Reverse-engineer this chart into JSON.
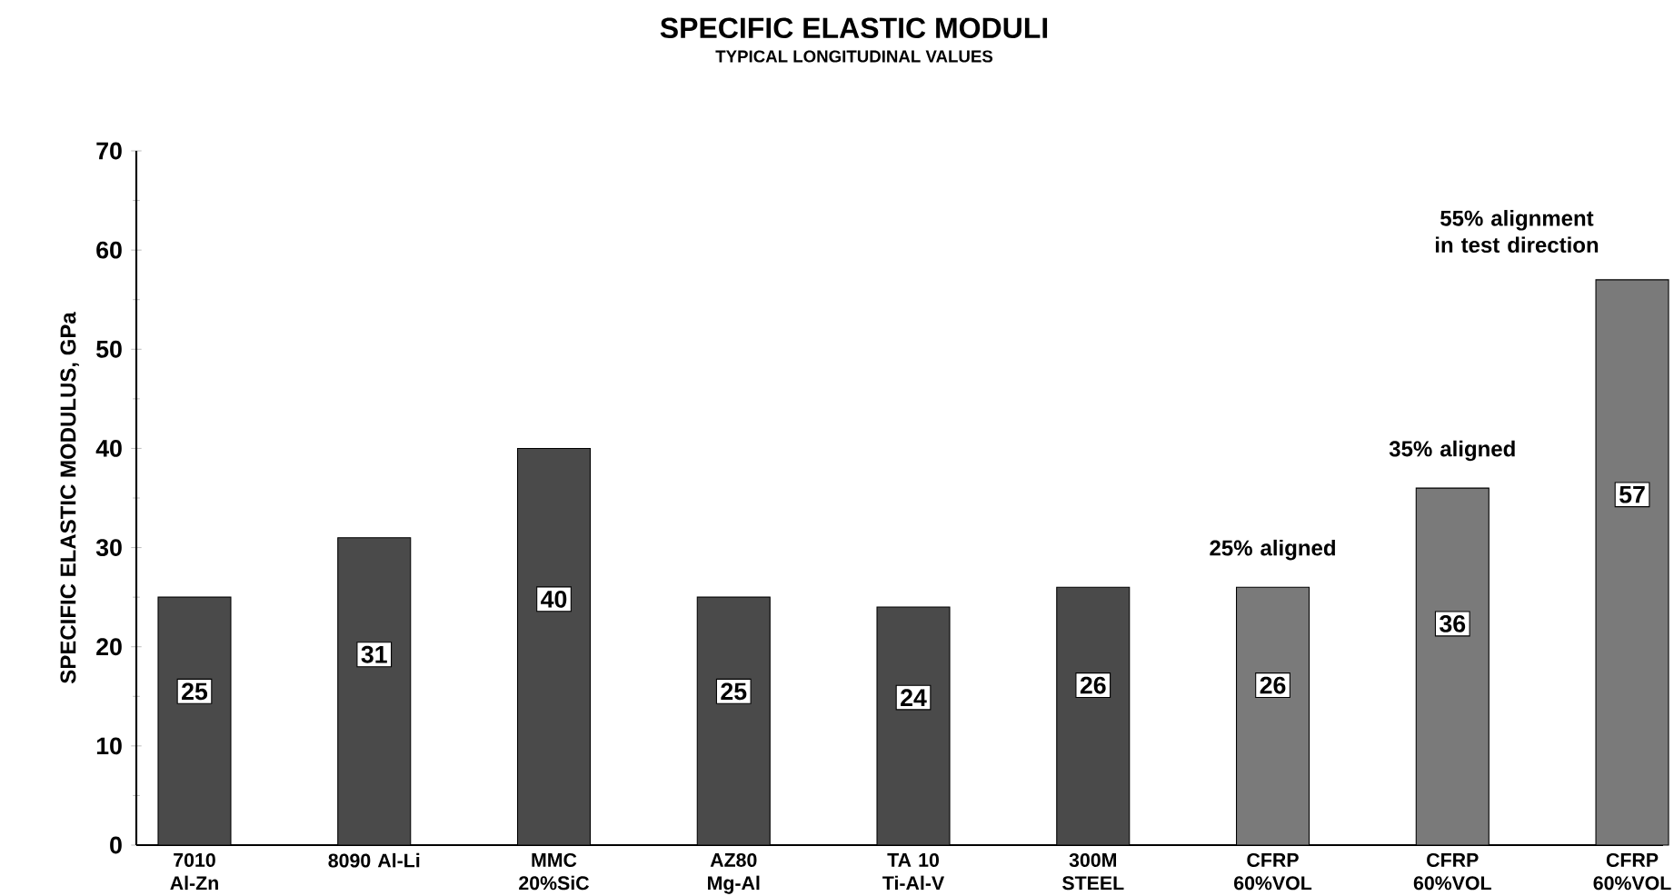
{
  "chart_data": {
    "type": "bar",
    "title": "SPECIFIC ELASTIC MODULI",
    "subtitle": "TYPICAL LONGITUDINAL VALUES",
    "ylabel": "SPECIFIC ELASTIC MODULUS, GPa",
    "categories": [
      "7010 Al-Zn",
      "8090 Al-Li",
      "MMC 20%SiC",
      "AZ80 Mg-Al",
      "TA 10 Ti-Al-V",
      "300M STEEL",
      "CFRP 60%VOL",
      "CFRP 60%VOL",
      "CFRP 60%VOL"
    ],
    "values": [
      25,
      31,
      40,
      25,
      24,
      26,
      26,
      36,
      57
    ],
    "colors": [
      "#4a4a4a",
      "#4a4a4a",
      "#4a4a4a",
      "#4a4a4a",
      "#4a4a4a",
      "#4a4a4a",
      "#7a7a7a",
      "#7a7a7a",
      "#7a7a7a"
    ],
    "data_labels": true,
    "ylim": [
      0,
      70
    ],
    "yticks": [
      0,
      10,
      20,
      30,
      40,
      50,
      60,
      70
    ],
    "annotations": [
      "25% aligned",
      "35% aligned",
      "55% alignment in test direction"
    ]
  }
}
